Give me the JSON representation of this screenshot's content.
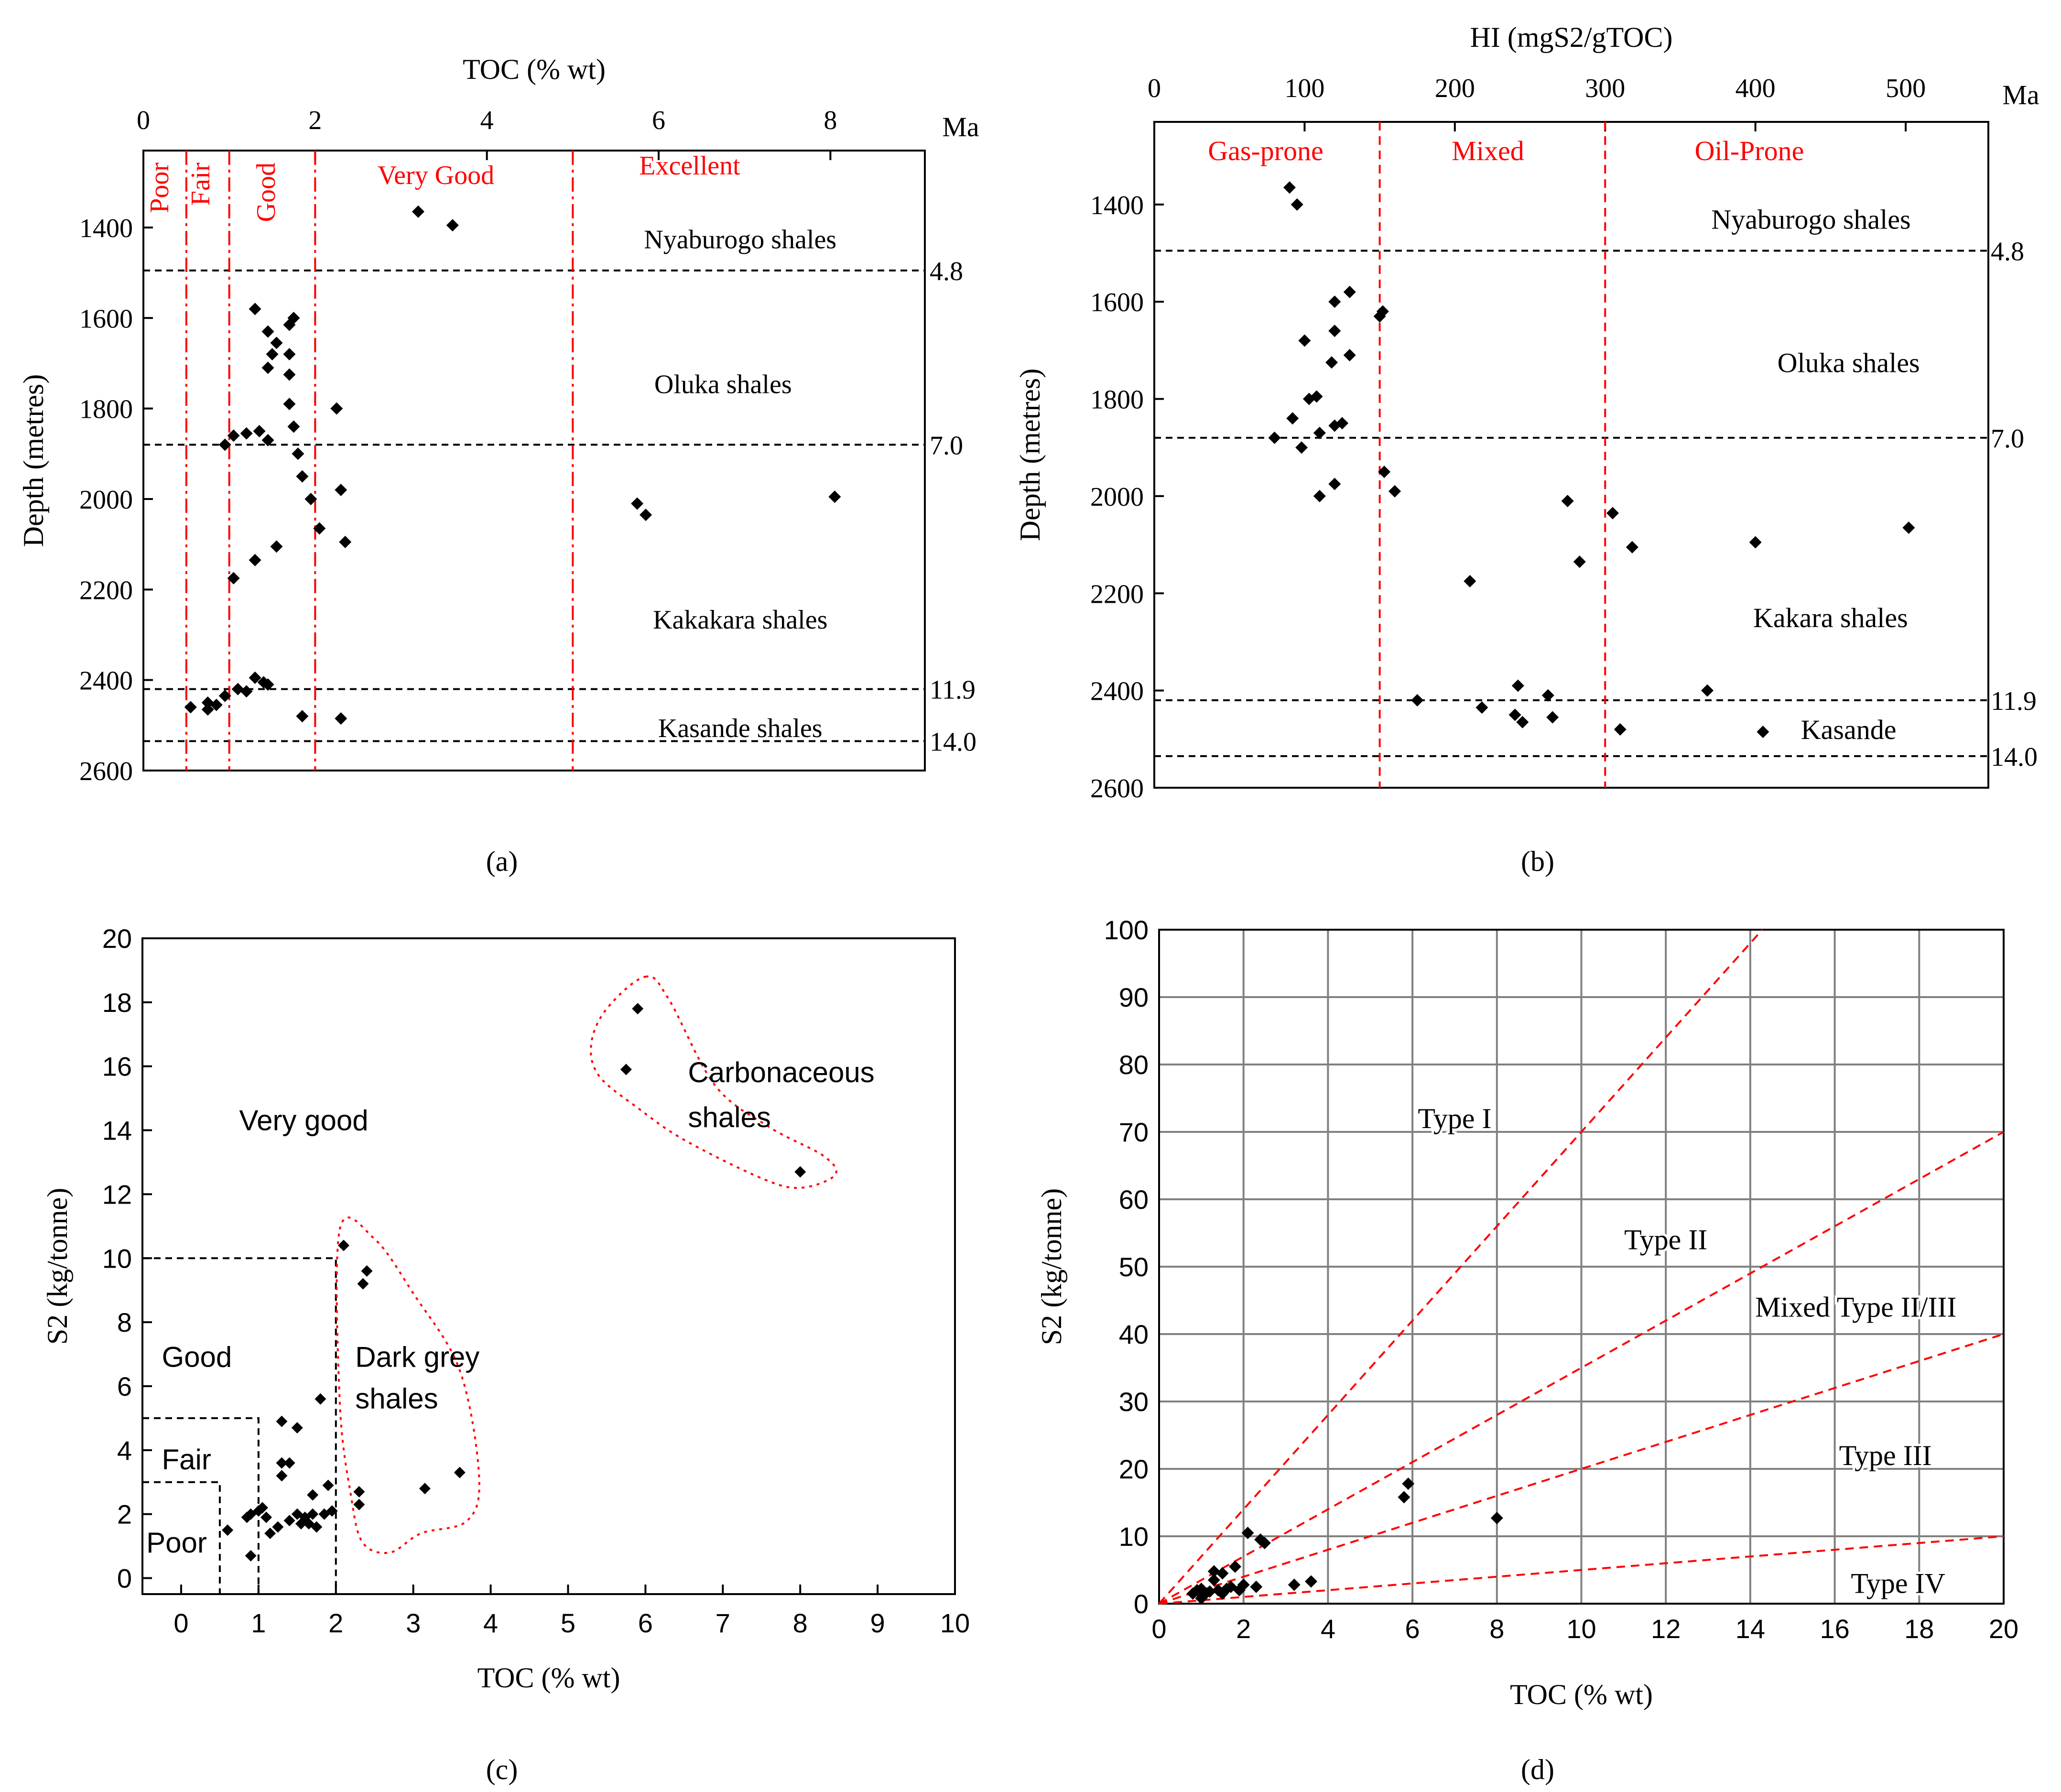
{
  "panel_captions": {
    "a": "(a)",
    "b": "(b)",
    "c": "(c)",
    "d": "(d)"
  },
  "chart_data": [
    {
      "id": "a",
      "type": "scatter",
      "xlabel": "TOC (% wt)",
      "ylabel": "Depth (metres)",
      "xlim": [
        0,
        9.1
      ],
      "ylim": [
        2600,
        1230
      ],
      "x_ticks": [
        0,
        2,
        4,
        6,
        8
      ],
      "y_ticks": [
        1400,
        1600,
        1800,
        2000,
        2200,
        2400,
        2600
      ],
      "age_axis_label": "Ma",
      "age_labels": [
        {
          "label": "4.8",
          "depth": 1495
        },
        {
          "label": "7.0",
          "depth": 1880
        },
        {
          "label": "11.9",
          "depth": 2420
        },
        {
          "label": "14.0",
          "depth": 2535
        }
      ],
      "boundaries": [
        {
          "label": "Poor",
          "x": 0.5
        },
        {
          "label": "Fair",
          "x": 1.0
        },
        {
          "label": "Good",
          "x": 2.0
        },
        {
          "label": "Very Good",
          "x": 5.0
        },
        {
          "label": "Excellent",
          "x": null
        }
      ],
      "formations": [
        {
          "label": "Nyaburogo shales",
          "x": 6.95,
          "depth": 1425
        },
        {
          "label": "Oluka shales",
          "x": 6.75,
          "depth": 1745
        },
        {
          "label": "Kakakara shales",
          "x": 6.95,
          "depth": 2265
        },
        {
          "label": "Kasande shales",
          "x": 6.95,
          "depth": 2505
        }
      ],
      "points": [
        [
          3.2,
          1365
        ],
        [
          3.6,
          1395
        ],
        [
          1.3,
          1580
        ],
        [
          1.75,
          1600
        ],
        [
          1.7,
          1615
        ],
        [
          1.45,
          1630
        ],
        [
          1.55,
          1655
        ],
        [
          1.5,
          1680
        ],
        [
          1.7,
          1680
        ],
        [
          1.45,
          1710
        ],
        [
          1.7,
          1725
        ],
        [
          1.7,
          1790
        ],
        [
          2.25,
          1800
        ],
        [
          1.75,
          1840
        ],
        [
          1.35,
          1850
        ],
        [
          1.2,
          1855
        ],
        [
          1.05,
          1860
        ],
        [
          1.45,
          1870
        ],
        [
          0.95,
          1880
        ],
        [
          1.8,
          1900
        ],
        [
          1.85,
          1950
        ],
        [
          2.3,
          1980
        ],
        [
          1.95,
          2000
        ],
        [
          5.75,
          2010
        ],
        [
          8.05,
          1995
        ],
        [
          5.85,
          2035
        ],
        [
          2.05,
          2065
        ],
        [
          2.35,
          2095
        ],
        [
          1.55,
          2105
        ],
        [
          1.3,
          2135
        ],
        [
          1.05,
          2175
        ],
        [
          1.3,
          2395
        ],
        [
          1.4,
          2405
        ],
        [
          1.45,
          2410
        ],
        [
          1.1,
          2420
        ],
        [
          1.2,
          2425
        ],
        [
          0.95,
          2435
        ],
        [
          0.75,
          2450
        ],
        [
          0.85,
          2455
        ],
        [
          0.55,
          2460
        ],
        [
          0.75,
          2465
        ],
        [
          1.85,
          2480
        ],
        [
          2.3,
          2485
        ]
      ]
    },
    {
      "id": "b",
      "type": "scatter",
      "xlabel": "HI (mgS2/gTOC)",
      "ylabel": "Depth (metres)",
      "xlim": [
        0,
        555
      ],
      "ylim": [
        2600,
        1230
      ],
      "x_ticks": [
        0,
        100,
        200,
        300,
        400,
        500
      ],
      "y_ticks": [
        1400,
        1600,
        1800,
        2000,
        2200,
        2400,
        2600
      ],
      "age_axis_label": "Ma",
      "age_labels": [
        {
          "label": "4.8",
          "depth": 1495
        },
        {
          "label": "7.0",
          "depth": 1880
        },
        {
          "label": "11.9",
          "depth": 2420
        },
        {
          "label": "14.0",
          "depth": 2535
        }
      ],
      "boundaries": [
        {
          "label": "Gas-prone",
          "x": 150
        },
        {
          "label": "Mixed",
          "x": 300
        },
        {
          "label": "Oil-Prone",
          "x": null
        }
      ],
      "formations": [
        {
          "label": "Nyaburogo shales",
          "x": 437,
          "depth": 1430
        },
        {
          "label": "Oluka shales",
          "x": 462,
          "depth": 1725
        },
        {
          "label": "Kakara shales",
          "x": 450,
          "depth": 2250
        },
        {
          "label": "Kasande",
          "x": 462,
          "depth": 2480
        }
      ],
      "points": [
        [
          90,
          1365
        ],
        [
          95,
          1400
        ],
        [
          130,
          1580
        ],
        [
          120,
          1600
        ],
        [
          152,
          1620
        ],
        [
          150,
          1630
        ],
        [
          120,
          1660
        ],
        [
          100,
          1680
        ],
        [
          130,
          1710
        ],
        [
          118,
          1725
        ],
        [
          108,
          1795
        ],
        [
          103,
          1800
        ],
        [
          92,
          1840
        ],
        [
          110,
          1870
        ],
        [
          125,
          1850
        ],
        [
          120,
          1855
        ],
        [
          80,
          1880
        ],
        [
          98,
          1900
        ],
        [
          153,
          1950
        ],
        [
          160,
          1990
        ],
        [
          120,
          1975
        ],
        [
          110,
          2000
        ],
        [
          275,
          2010
        ],
        [
          305,
          2035
        ],
        [
          318,
          2105
        ],
        [
          283,
          2135
        ],
        [
          400,
          2095
        ],
        [
          502,
          2065
        ],
        [
          210,
          2175
        ],
        [
          175,
          2420
        ],
        [
          218,
          2435
        ],
        [
          240,
          2450
        ],
        [
          245,
          2465
        ],
        [
          242,
          2390
        ],
        [
          262,
          2410
        ],
        [
          265,
          2455
        ],
        [
          368,
          2400
        ],
        [
          310,
          2480
        ],
        [
          405,
          2485
        ]
      ]
    },
    {
      "id": "c",
      "type": "scatter",
      "xlabel": "TOC (% wt)",
      "ylabel": "S2 (kg/tonne)",
      "xlim": [
        -0.5,
        10
      ],
      "ylim": [
        -0.5,
        20
      ],
      "x_ticks": [
        0,
        1,
        2,
        3,
        4,
        5,
        6,
        7,
        8,
        9,
        10
      ],
      "y_ticks": [
        0,
        2,
        4,
        6,
        8,
        10,
        12,
        14,
        16,
        18,
        20
      ],
      "class_limits": [
        {
          "label": "Poor",
          "toc": 0.5,
          "s2": 3
        },
        {
          "label": "Fair",
          "toc": 1,
          "s2": 5
        },
        {
          "label": "Good",
          "toc": 2,
          "s2": 10
        },
        {
          "label": "Very good",
          "toc": null,
          "s2": null
        }
      ],
      "groups": [
        {
          "label": "Dark grey shales"
        },
        {
          "label": "Carbonaceous shales"
        }
      ],
      "points": [
        [
          0.6,
          1.5
        ],
        [
          0.85,
          1.9
        ],
        [
          0.9,
          2.0
        ],
        [
          0.9,
          0.7
        ],
        [
          1.0,
          2.1
        ],
        [
          1.05,
          2.2
        ],
        [
          1.1,
          1.9
        ],
        [
          1.15,
          1.4
        ],
        [
          1.25,
          1.6
        ],
        [
          1.3,
          3.6
        ],
        [
          1.3,
          3.2
        ],
        [
          1.3,
          4.9
        ],
        [
          1.4,
          3.6
        ],
        [
          1.4,
          1.8
        ],
        [
          1.5,
          4.7
        ],
        [
          1.5,
          2.0
        ],
        [
          1.55,
          1.7
        ],
        [
          1.6,
          1.9
        ],
        [
          1.65,
          1.7
        ],
        [
          1.7,
          2.0
        ],
        [
          1.7,
          2.6
        ],
        [
          1.75,
          1.6
        ],
        [
          1.8,
          5.6
        ],
        [
          1.85,
          2.0
        ],
        [
          1.9,
          2.9
        ],
        [
          1.95,
          2.1
        ],
        [
          2.1,
          10.4
        ],
        [
          2.3,
          2.3
        ],
        [
          2.3,
          2.7
        ],
        [
          2.35,
          9.2
        ],
        [
          2.4,
          9.6
        ],
        [
          3.15,
          2.8
        ],
        [
          3.6,
          3.3
        ],
        [
          5.75,
          15.9
        ],
        [
          5.9,
          17.8
        ],
        [
          8.0,
          12.7
        ]
      ]
    },
    {
      "id": "d",
      "type": "scatter",
      "xlabel": "TOC (% wt)",
      "ylabel": "S2 (kg/tonne)",
      "xlim": [
        0,
        20
      ],
      "ylim": [
        0,
        100
      ],
      "x_ticks": [
        0,
        2,
        4,
        6,
        8,
        10,
        12,
        14,
        16,
        18,
        20
      ],
      "y_ticks": [
        0,
        10,
        20,
        30,
        40,
        50,
        60,
        70,
        80,
        90,
        100
      ],
      "grid": true,
      "type_lines_HI": [
        700,
        350,
        200,
        50
      ],
      "type_labels": [
        {
          "label": "Type I",
          "x": 7.0,
          "y": 72
        },
        {
          "label": "Type II",
          "x": 12.0,
          "y": 54
        },
        {
          "label": "Mixed Type II/III",
          "x": 16.5,
          "y": 44
        },
        {
          "label": "Type III",
          "x": 17.2,
          "y": 22
        },
        {
          "label": "Type IV",
          "x": 17.5,
          "y": 3
        }
      ],
      "points": [
        [
          0.8,
          1.5
        ],
        [
          0.9,
          2.0
        ],
        [
          1.0,
          0.8
        ],
        [
          1.0,
          2.2
        ],
        [
          1.1,
          1.5
        ],
        [
          1.2,
          1.8
        ],
        [
          1.3,
          3.5
        ],
        [
          1.3,
          4.8
        ],
        [
          1.4,
          2.0
        ],
        [
          1.5,
          4.5
        ],
        [
          1.5,
          1.5
        ],
        [
          1.6,
          2.2
        ],
        [
          1.7,
          2.5
        ],
        [
          1.8,
          5.5
        ],
        [
          1.9,
          2.0
        ],
        [
          2.0,
          2.8
        ],
        [
          2.1,
          10.5
        ],
        [
          2.3,
          2.5
        ],
        [
          2.4,
          9.5
        ],
        [
          2.5,
          9.0
        ],
        [
          3.2,
          2.8
        ],
        [
          3.6,
          3.3
        ],
        [
          5.8,
          15.8
        ],
        [
          5.9,
          17.8
        ],
        [
          8.0,
          12.7
        ]
      ]
    }
  ]
}
